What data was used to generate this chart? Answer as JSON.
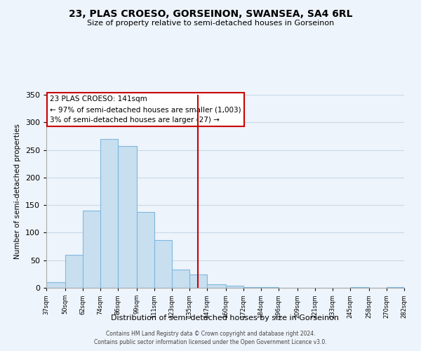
{
  "title": "23, PLAS CROESO, GORSEINON, SWANSEA, SA4 6RL",
  "subtitle": "Size of property relative to semi-detached houses in Gorseinon",
  "xlabel": "Distribution of semi-detached houses by size in Gorseinon",
  "ylabel": "Number of semi-detached properties",
  "bar_left_edges": [
    37,
    50,
    62,
    74,
    86,
    99,
    111,
    123,
    135,
    147,
    160,
    172,
    184,
    196,
    209,
    221,
    233,
    245,
    258,
    270
  ],
  "bar_widths": [
    13,
    12,
    12,
    12,
    13,
    12,
    12,
    12,
    12,
    13,
    12,
    12,
    12,
    13,
    12,
    12,
    12,
    13,
    12,
    12
  ],
  "bar_heights": [
    10,
    60,
    140,
    270,
    257,
    138,
    86,
    33,
    24,
    7,
    4,
    1,
    1,
    0,
    0,
    0,
    0,
    1,
    0,
    1
  ],
  "bar_color": "#c8dff0",
  "bar_edge_color": "#7fb8de",
  "vline_x": 141,
  "vline_color": "#cc0000",
  "annotation_title": "23 PLAS CROESO: 141sqm",
  "annotation_line1": "← 97% of semi-detached houses are smaller (1,003)",
  "annotation_line2": "3% of semi-detached houses are larger (27) →",
  "annotation_box_color": "#ffffff",
  "annotation_box_edge": "#cc0000",
  "tick_labels": [
    "37sqm",
    "50sqm",
    "62sqm",
    "74sqm",
    "86sqm",
    "99sqm",
    "111sqm",
    "123sqm",
    "135sqm",
    "147sqm",
    "160sqm",
    "172sqm",
    "184sqm",
    "196sqm",
    "209sqm",
    "221sqm",
    "233sqm",
    "245sqm",
    "258sqm",
    "270sqm",
    "282sqm"
  ],
  "ylim": [
    0,
    350
  ],
  "yticks": [
    0,
    50,
    100,
    150,
    200,
    250,
    300,
    350
  ],
  "grid_color": "#c8d8e8",
  "background_color": "#eef4fb",
  "footer_line1": "Contains HM Land Registry data © Crown copyright and database right 2024.",
  "footer_line2": "Contains public sector information licensed under the Open Government Licence v3.0."
}
